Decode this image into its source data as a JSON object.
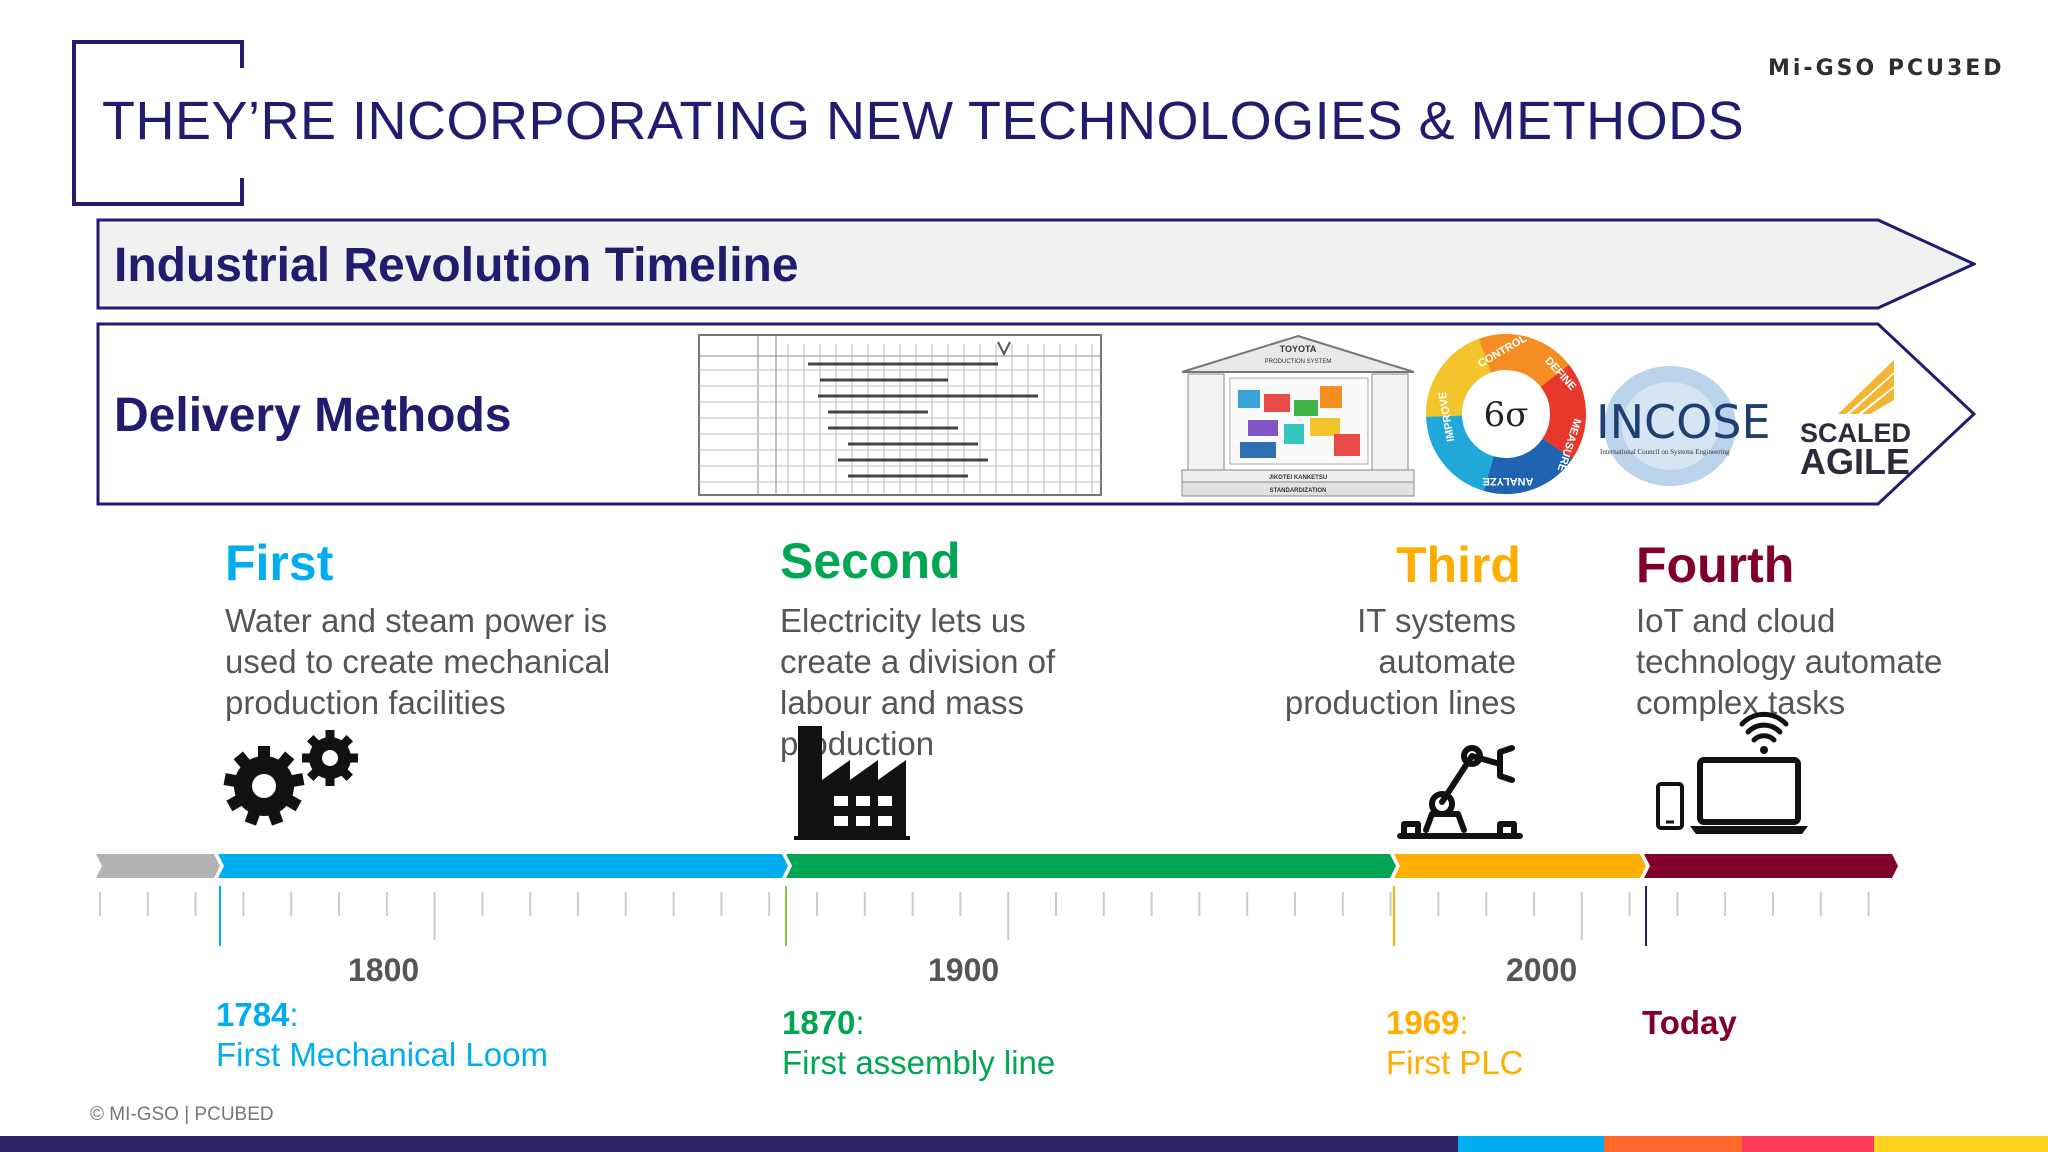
{
  "slide": {
    "title": "THEY’RE INCORPORATING NEW TECHNOLOGIES & METHODS",
    "logo": "Mi-GSO PCU3ED",
    "copyright": "© MI-GSO | PCUBED"
  },
  "rows": {
    "timeline_label": "Industrial Revolution Timeline",
    "methods_label": "Delivery Methods"
  },
  "methods": {
    "toyota_top": "TOYOTA",
    "toyota_sub": "PRODUCTION SYSTEM",
    "toyota_base1": "JIKOTEI KANKETSU",
    "toyota_base2": "STANDARDIZATION",
    "sixsigma_center": "6σ",
    "sixsigma_control": "CONTROL",
    "sixsigma_define": "DEFINE",
    "sixsigma_measure": "MEASURE",
    "sixsigma_analyze": "ANALYZE",
    "sixsigma_improve": "IMPROVE",
    "incose_name": "INCOSE",
    "incose_sub": "International Council on Systems Engineering",
    "agile_line1": "SCALED",
    "agile_line2": "AGILE"
  },
  "eras": [
    {
      "title": "First",
      "color": "#00aeef",
      "desc": [
        "Water and steam power is",
        "used to create mechanical",
        "production facilities"
      ],
      "icon": "gears-icon"
    },
    {
      "title": "Second",
      "color": "#00a651",
      "desc": [
        "Electricity lets us",
        "create a division of",
        "labour and mass",
        "production"
      ],
      "icon": "factory-icon"
    },
    {
      "title": "Third",
      "color": "#ffae00",
      "desc": [
        "IT systems",
        "automate",
        "production lines"
      ],
      "icon": "robot-arm-icon"
    },
    {
      "title": "Fourth",
      "color": "#80002a",
      "desc": [
        "IoT and cloud",
        "technology automate",
        "complex tasks"
      ],
      "icon": "laptop-wifi-icon"
    }
  ],
  "axis": {
    "years": [
      "1800",
      "1900",
      "2000"
    ],
    "segment_colors": [
      "#b3b3b3",
      "#00aeef",
      "#00a651",
      "#ffae00",
      "#80002a"
    ]
  },
  "events": [
    {
      "year": "1784",
      "suffix": ":",
      "name": "First Mechanical Loom",
      "color": "#00aeef"
    },
    {
      "year": "1870",
      "suffix": ":",
      "name": "First assembly line",
      "color": "#00a651"
    },
    {
      "year": "1969",
      "suffix": ":",
      "name": "First PLC",
      "color": "#ffae00"
    },
    {
      "year": "Today",
      "suffix": "",
      "name": "",
      "color": "#80002a"
    }
  ],
  "footer_colors": [
    "#2b2364",
    "#00aeef",
    "#ff6a2b",
    "#ff3c57",
    "#ffd21f"
  ]
}
